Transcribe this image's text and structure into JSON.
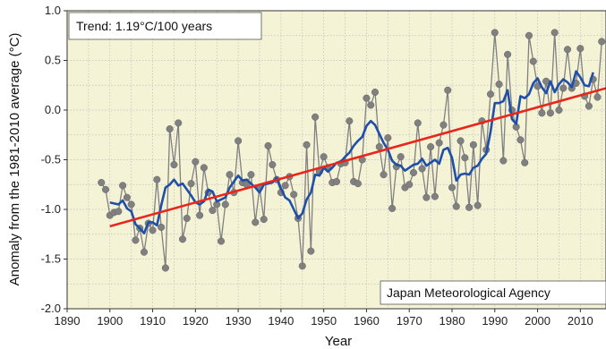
{
  "chart_data": {
    "type": "line",
    "xlabel": "Year",
    "ylabel": "Anomaly from the 1981-2010 average (°C)",
    "xlim": [
      1890,
      2016
    ],
    "ylim": [
      -2.0,
      1.0
    ],
    "xticks": [
      "1890",
      "1900",
      "1910",
      "1920",
      "1930",
      "1940",
      "1950",
      "1960",
      "1970",
      "1980",
      "1990",
      "2000",
      "2010"
    ],
    "yticks": [
      "1.0",
      "0.5",
      "0.0",
      "-0.5",
      "-1.0",
      "-1.5",
      "-2.0"
    ],
    "grid": true,
    "annotations": {
      "trend_text": "Trend: 1.19°C/100 years",
      "agency_text": "Japan Meteorological Agency"
    },
    "colors": {
      "background": "#f5f3d6",
      "annual": "#808080",
      "moving_average": "#1f4fa8",
      "trend": "#e8261c",
      "grid": "#bdbdbd"
    },
    "series": [
      {
        "x": [
          1898,
          1899,
          1900,
          1901,
          1902,
          1903,
          1904,
          1905,
          1906,
          1907,
          1908,
          1909,
          1910,
          1911,
          1912,
          1913,
          1914,
          1915,
          1916,
          1917,
          1918,
          1919,
          1920,
          1921,
          1922,
          1923,
          1924,
          1925,
          1926,
          1927,
          1928,
          1929,
          1930,
          1931,
          1932,
          1933,
          1934,
          1935,
          1936,
          1937,
          1938,
          1939,
          1940,
          1941,
          1942,
          1943,
          1944,
          1945,
          1946,
          1947,
          1948,
          1949,
          1950,
          1951,
          1952,
          1953,
          1954,
          1955,
          1956,
          1957,
          1958,
          1959,
          1960,
          1961,
          1962,
          1963,
          1964,
          1965,
          1966,
          1967,
          1968,
          1969,
          1970,
          1971,
          1972,
          1973,
          1974,
          1975,
          1976,
          1977,
          1978,
          1979,
          1980,
          1981,
          1982,
          1983,
          1984,
          1985,
          1986,
          1987,
          1988,
          1989,
          1990,
          1991,
          1992,
          1993,
          1994,
          1995,
          1996,
          1997,
          1998,
          1999,
          2000,
          2001,
          2002,
          2003,
          2004,
          2005,
          2006,
          2007,
          2008,
          2009,
          2010,
          2011,
          2012,
          2013,
          2014,
          2015
        ],
        "values": [
          -0.73,
          -0.8,
          -1.06,
          -1.03,
          -1.02,
          -0.76,
          -0.88,
          -0.95,
          -1.31,
          -1.19,
          -1.43,
          -1.14,
          -1.21,
          -0.7,
          -1.18,
          -1.59,
          -0.19,
          -0.55,
          -0.13,
          -1.3,
          -1.09,
          -0.74,
          -0.52,
          -1.06,
          -0.58,
          -0.83,
          -1.01,
          -0.95,
          -1.32,
          -0.95,
          -0.65,
          -0.83,
          -0.31,
          -0.73,
          -0.75,
          -0.65,
          -1.13,
          -0.78,
          -1.1,
          -0.36,
          -0.55,
          -0.7,
          -0.83,
          -0.76,
          -0.67,
          -0.85,
          -1.09,
          -1.57,
          -0.35,
          -1.42,
          -0.07,
          -0.62,
          -0.47,
          -0.58,
          -0.73,
          -0.72,
          -0.54,
          -0.53,
          -0.11,
          -0.72,
          -0.74,
          -0.5,
          0.12,
          0.05,
          0.18,
          -0.37,
          -0.65,
          -0.28,
          -0.99,
          -0.57,
          -0.47,
          -0.78,
          -0.75,
          -0.63,
          -0.13,
          -0.59,
          -0.88,
          -0.37,
          -0.87,
          -0.33,
          -0.15,
          0.2,
          -0.78,
          -0.97,
          -0.31,
          -0.48,
          -0.98,
          -0.35,
          -0.96,
          -0.11,
          -0.4,
          0.16,
          0.78,
          0.26,
          -0.51,
          0.56,
          0.0,
          -0.17,
          -0.3,
          -0.53,
          0.75,
          0.49,
          0.24,
          -0.03,
          0.29,
          -0.03,
          0.78,
          0.0,
          0.22,
          0.61,
          0.22,
          0.27,
          0.62,
          0.14,
          0.04,
          0.31,
          0.13,
          0.69
        ]
      },
      {
        "x": [
          1900,
          1901,
          1902,
          1903,
          1904,
          1905,
          1906,
          1907,
          1908,
          1909,
          1910,
          1911,
          1912,
          1913,
          1914,
          1915,
          1916,
          1917,
          1918,
          1919,
          1920,
          1921,
          1922,
          1923,
          1924,
          1925,
          1926,
          1927,
          1928,
          1929,
          1930,
          1931,
          1932,
          1933,
          1934,
          1935,
          1936,
          1937,
          1938,
          1939,
          1940,
          1941,
          1942,
          1943,
          1944,
          1945,
          1946,
          1947,
          1948,
          1949,
          1950,
          1951,
          1952,
          1953,
          1954,
          1955,
          1956,
          1957,
          1958,
          1959,
          1960,
          1961,
          1962,
          1963,
          1964,
          1965,
          1966,
          1967,
          1968,
          1969,
          1970,
          1971,
          1972,
          1973,
          1974,
          1975,
          1976,
          1977,
          1978,
          1979,
          1980,
          1981,
          1982,
          1983,
          1984,
          1985,
          1986,
          1987,
          1988,
          1989,
          1990,
          1991,
          1992,
          1993,
          1994,
          1995,
          1996,
          1997,
          1998,
          1999,
          2000,
          2001,
          2002,
          2003,
          2004,
          2005,
          2006,
          2007,
          2008,
          2009,
          2010,
          2011,
          2012,
          2013
        ],
        "values": [
          -0.93,
          -0.94,
          -0.95,
          -0.91,
          -0.99,
          -1.02,
          -1.15,
          -1.19,
          -1.24,
          -1.13,
          -1.13,
          -1.16,
          -0.96,
          -0.78,
          -0.75,
          -0.7,
          -0.76,
          -0.74,
          -0.8,
          -0.86,
          -0.93,
          -0.95,
          -0.92,
          -0.8,
          -0.82,
          -0.92,
          -0.9,
          -0.88,
          -0.78,
          -0.72,
          -0.66,
          -0.71,
          -0.7,
          -0.74,
          -0.78,
          -0.83,
          -0.75,
          -0.74,
          -0.73,
          -0.68,
          -0.79,
          -0.88,
          -0.91,
          -1.0,
          -1.09,
          -1.04,
          -0.9,
          -0.83,
          -0.65,
          -0.66,
          -0.58,
          -0.62,
          -0.58,
          -0.53,
          -0.52,
          -0.47,
          -0.43,
          -0.36,
          -0.31,
          -0.27,
          -0.16,
          -0.11,
          -0.15,
          -0.24,
          -0.33,
          -0.4,
          -0.51,
          -0.55,
          -0.56,
          -0.61,
          -0.58,
          -0.55,
          -0.54,
          -0.49,
          -0.56,
          -0.53,
          -0.5,
          -0.54,
          -0.4,
          -0.38,
          -0.48,
          -0.71,
          -0.65,
          -0.64,
          -0.65,
          -0.58,
          -0.56,
          -0.49,
          -0.44,
          -0.22,
          0.07,
          0.07,
          0.09,
          0.2,
          -0.09,
          -0.14,
          0.14,
          0.12,
          0.16,
          0.27,
          0.32,
          0.23,
          0.17,
          0.29,
          0.18,
          0.26,
          0.31,
          0.28,
          0.23,
          0.39,
          0.33,
          0.25,
          0.24,
          0.38
        ]
      },
      {
        "x": [
          1900,
          2016
        ],
        "values": [
          -1.17,
          0.22
        ]
      }
    ]
  }
}
